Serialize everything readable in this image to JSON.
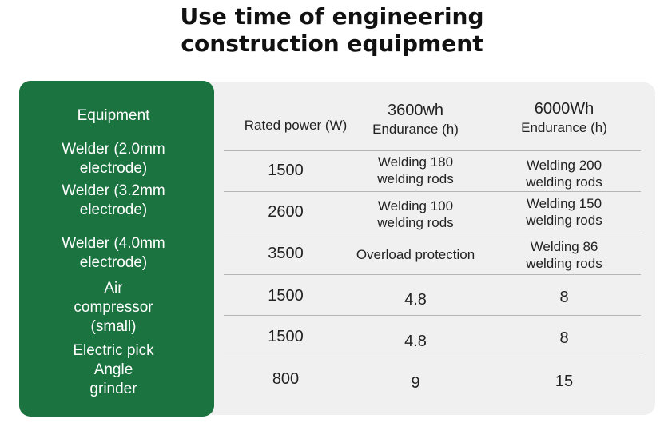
{
  "title": {
    "line1": "Use time of engineering",
    "line2": "construction equipment"
  },
  "header": {
    "equipment": "Equipment",
    "power": "Rated power (W)",
    "col3600_line1": "3600wh",
    "col3600_line2": "Endurance (h)",
    "col6000_line1": "6000Wh",
    "col6000_line2": "Endurance (h)"
  },
  "equipment_labels": [
    "Welder (2.0mm",
    "electrode)",
    "Welder (3.2mm",
    "electrode)",
    "Welder (4.0mm",
    "electrode)",
    "Air",
    "compressor",
    "(small)",
    "Electric pick",
    "Angle",
    "grinder"
  ],
  "rows": [
    {
      "power": "1500",
      "e3600": [
        "Welding 180",
        "welding rods"
      ],
      "e6000": [
        "Welding 200",
        "welding rods"
      ]
    },
    {
      "power": "2600",
      "e3600": [
        "Welding 100",
        "welding rods"
      ],
      "e6000": [
        "Welding 150",
        "welding rods"
      ]
    },
    {
      "power": "3500",
      "e3600": [
        "Overload protection"
      ],
      "e6000": [
        "Welding 86",
        "welding rods"
      ]
    },
    {
      "power": "1500",
      "e3600": [
        "4.8"
      ],
      "e6000": [
        "8"
      ]
    },
    {
      "power": "1500",
      "e3600": [
        "4.8"
      ],
      "e6000": [
        "8"
      ]
    },
    {
      "power": "800",
      "e3600": [
        "9"
      ],
      "e6000": [
        "15"
      ]
    }
  ],
  "colors": {
    "green_column": "#1b7340",
    "panel_background": "#f0f0f0",
    "divider": "#b5b5b5"
  }
}
